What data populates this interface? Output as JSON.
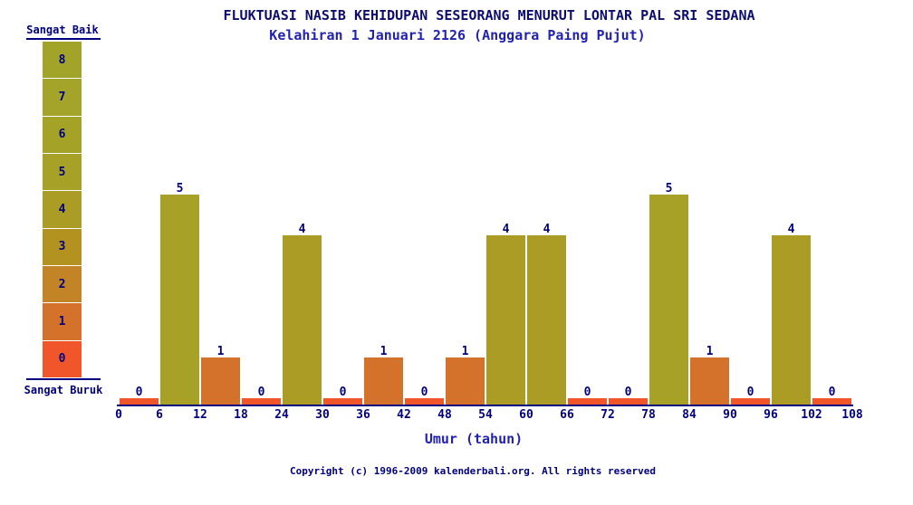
{
  "chart_data": {
    "type": "bar",
    "title": "FLUKTUASI NASIB KEHIDUPAN SESEORANG MENURUT LONTAR PAL SRI SEDANA",
    "subtitle": "Kelahiran 1 Januari 2126 (Anggara Paing Pujut)",
    "xlabel": "Umur (tahun)",
    "ylabel": "",
    "ylim": [
      0,
      8
    ],
    "x_ticks": [
      0,
      6,
      12,
      18,
      24,
      30,
      36,
      42,
      48,
      54,
      60,
      66,
      72,
      78,
      84,
      90,
      96,
      102,
      108
    ],
    "bin_width": 6,
    "categories": [
      "0-6",
      "6-12",
      "12-18",
      "18-24",
      "24-30",
      "30-36",
      "36-42",
      "42-48",
      "48-54",
      "54-60",
      "60-66",
      "66-72",
      "72-78",
      "78-84",
      "84-90",
      "90-96",
      "96-102",
      "102-108"
    ],
    "values": [
      0,
      5,
      1,
      0,
      4,
      0,
      1,
      0,
      1,
      4,
      4,
      0,
      0,
      5,
      1,
      0,
      4,
      0
    ],
    "bar_value_labels": true,
    "grid": false,
    "legend_position": "left",
    "value_colors": {
      "0": "#f0562a",
      "1": "#d4722c",
      "2": "#c28426",
      "3": "#b39220",
      "4": "#aa9c24",
      "5": "#a7a127",
      "6": "#a5a228",
      "7": "#a4a32a",
      "8": "#a2a42a"
    },
    "scale": {
      "top_label": "Sangat Baik",
      "bottom_label": "Sangat Buruk",
      "levels": [
        8,
        7,
        6,
        5,
        4,
        3,
        2,
        1,
        0
      ]
    }
  },
  "footer": {
    "copyright": "Copyright (c) 1996-2009 kalenderbali.org. All rights reserved"
  },
  "colors": {
    "background": "#ffffff",
    "axis": "#000080",
    "title_text": "#0d0d70",
    "subtitle_text": "#2222b0",
    "label_text": "#000080"
  }
}
